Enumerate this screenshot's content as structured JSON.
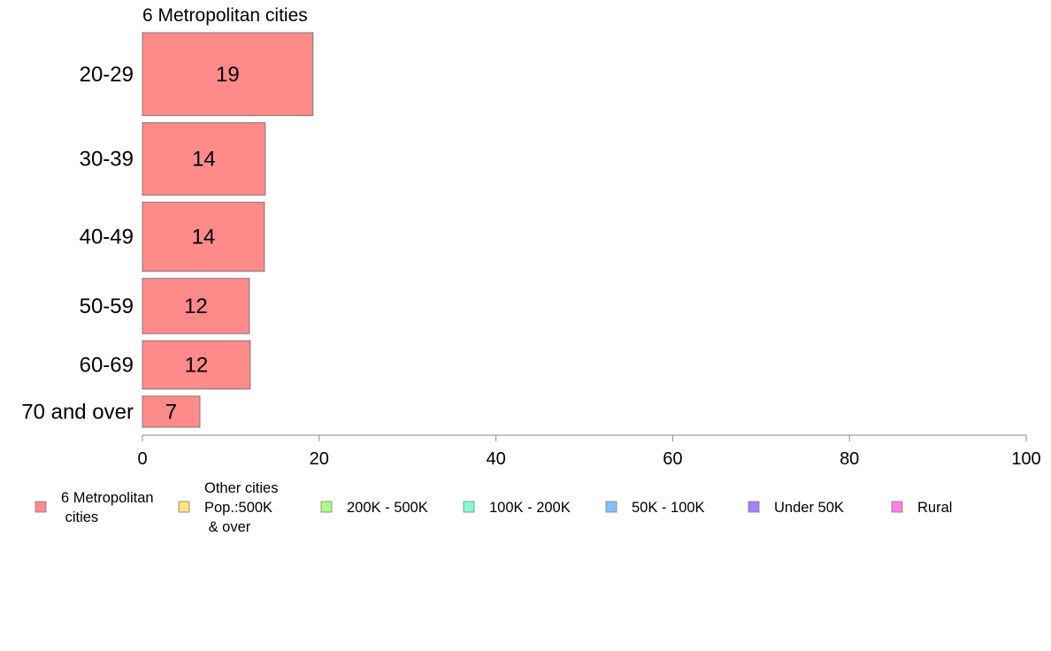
{
  "chart_data": {
    "type": "bar",
    "orientation": "horizontal",
    "title": "6 Metropolitan cities",
    "categories": [
      "20-29",
      "30-39",
      "40-49",
      "50-59",
      "60-69",
      "70 and over"
    ],
    "series": [
      {
        "name": "6 Metropolitan cities",
        "values": [
          19.3,
          13.9,
          13.8,
          12.1,
          12.2,
          6.5
        ],
        "labels": [
          "19",
          "14",
          "14",
          "12",
          "12",
          "7"
        ]
      }
    ],
    "bar_shares": [
      0.24,
      0.21,
      0.2,
      0.16,
      0.14,
      0.09
    ],
    "bar_color": "#ff8a8a",
    "xlim": [
      0,
      100
    ],
    "xticks": [
      "0",
      "20",
      "40",
      "60",
      "80",
      "100"
    ],
    "xlabel": "",
    "ylabel": "",
    "grid": false,
    "legend": {
      "position": "bottom",
      "items": [
        {
          "label": [
            "6 Metropolitan",
            " cities"
          ],
          "color": "#ff8a8a"
        },
        {
          "label": [
            "Other cities",
            "Pop.:500K",
            " & over"
          ],
          "color": "#ffe680"
        },
        {
          "label": [
            "200K - 500K"
          ],
          "color": "#a6ff80"
        },
        {
          "label": [
            "100K - 200K"
          ],
          "color": "#80ffcc"
        },
        {
          "label": [
            "50K - 100K"
          ],
          "color": "#80c4ff"
        },
        {
          "label": [
            "Under 50K"
          ],
          "color": "#a680ff"
        },
        {
          "label": [
            "Rural"
          ],
          "color": "#ff80e6"
        }
      ]
    }
  }
}
